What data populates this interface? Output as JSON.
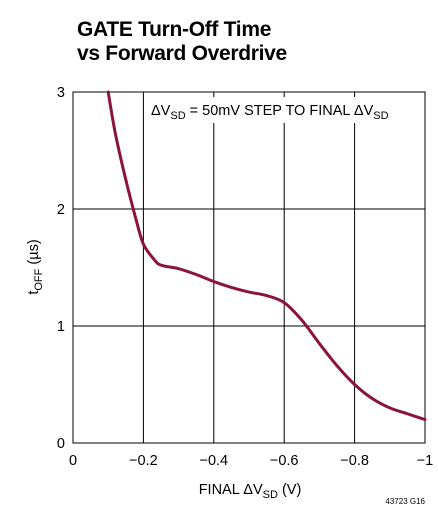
{
  "chart_data": {
    "type": "line",
    "title_lines": [
      "GATE Turn-Off Time",
      "vs Forward Overdrive"
    ],
    "xlabel": {
      "prefix": "FINAL ΔV",
      "sub": "SD",
      "suffix": " (V)"
    },
    "ylabel": {
      "prefix": "t",
      "sub": "OFF",
      "suffix": " (µs)"
    },
    "annotation": {
      "part1": "ΔV",
      "sub1": "SD",
      "part2": " = 50mV STEP TO FINAL ΔV",
      "sub2": "SD"
    },
    "xlim": [
      0,
      -1
    ],
    "ylim": [
      0,
      3
    ],
    "x_ticks": [
      0,
      -0.2,
      -0.4,
      -0.6,
      -0.8,
      -1
    ],
    "x_tick_labels": [
      "0",
      "−0.2",
      "−0.4",
      "−0.6",
      "−0.8",
      "−1"
    ],
    "y_ticks": [
      0,
      1,
      2,
      3
    ],
    "y_tick_labels": [
      "0",
      "1",
      "2",
      "3"
    ],
    "grid": true,
    "series": [
      {
        "color": "#8b1538",
        "x": [
          -0.1,
          -0.12,
          -0.15,
          -0.18,
          -0.2,
          -0.23,
          -0.25,
          -0.3,
          -0.35,
          -0.4,
          -0.45,
          -0.5,
          -0.55,
          -0.6,
          -0.65,
          -0.7,
          -0.75,
          -0.8,
          -0.85,
          -0.9,
          -0.95,
          -1.0
        ],
        "y": [
          3.0,
          2.65,
          2.25,
          1.9,
          1.7,
          1.57,
          1.52,
          1.49,
          1.44,
          1.38,
          1.33,
          1.29,
          1.26,
          1.2,
          1.05,
          0.85,
          0.66,
          0.5,
          0.38,
          0.3,
          0.25,
          0.2
        ]
      }
    ]
  },
  "figure_id": "43723 G16"
}
